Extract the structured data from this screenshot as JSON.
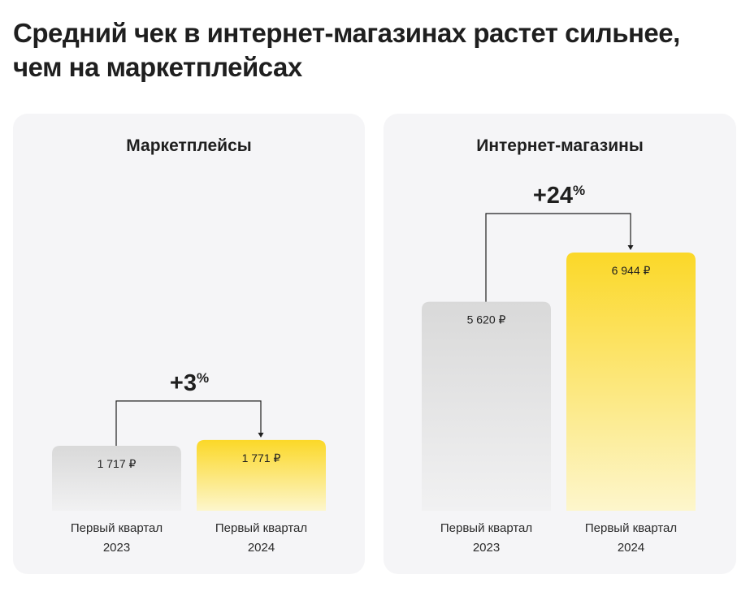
{
  "title": "Средний чек в интернет-магазинах растет сильнее, чем на маркетплейсах",
  "colors": {
    "bar_2023": "#d9d9d9",
    "bar_2024": "#fbd828",
    "panel_bg": "#f5f5f7"
  },
  "chart_data": [
    {
      "type": "bar",
      "title": "Маркетплейсы",
      "categories": [
        [
          "Первый квартал",
          "2023"
        ],
        [
          "Первый квартал",
          "2024"
        ]
      ],
      "values": [
        1717,
        1771
      ],
      "value_labels": [
        "1 717 ₽",
        "1 771 ₽"
      ],
      "growth": {
        "label": "+3",
        "suffix": "%"
      }
    },
    {
      "type": "bar",
      "title": "Интернет-магазины",
      "categories": [
        [
          "Первый квартал",
          "2023"
        ],
        [
          "Первый квартал",
          "2024"
        ]
      ],
      "values": [
        5620,
        6944
      ],
      "value_labels": [
        "5 620 ₽",
        "6 944 ₽"
      ],
      "growth": {
        "label": "+24",
        "suffix": "%"
      }
    }
  ]
}
